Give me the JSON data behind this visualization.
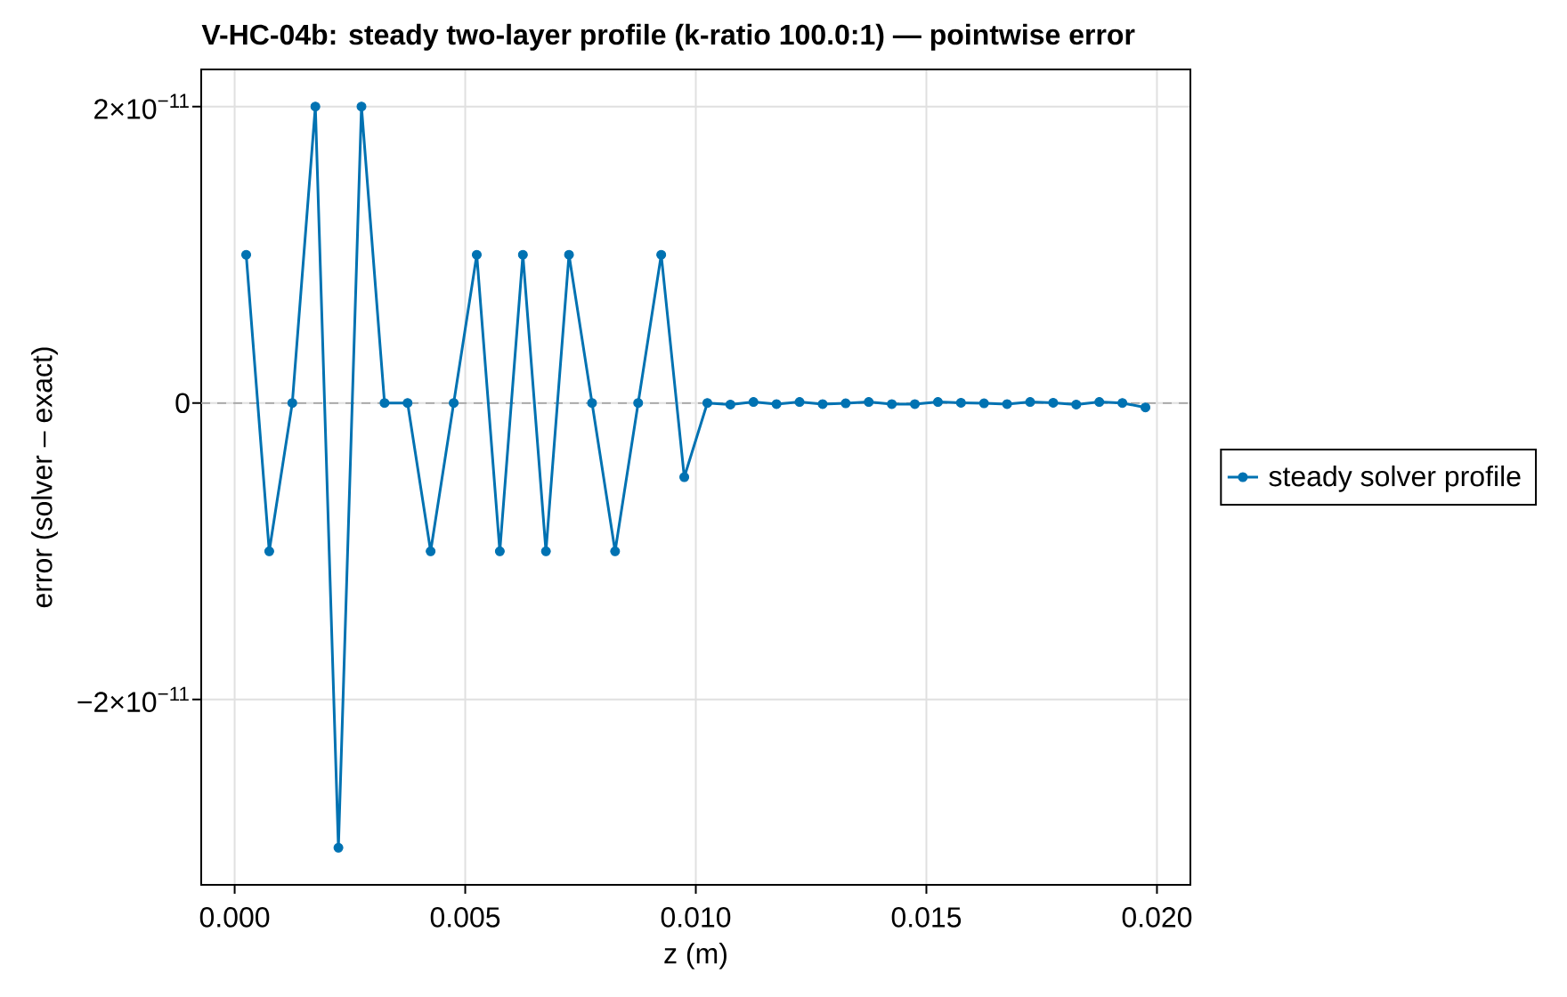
{
  "chart_data": {
    "type": "line",
    "title": "V-HC-04b: steady two-layer profile (k-ratio 100.0:1) — pointwise error",
    "xlabel": "z (m)",
    "ylabel": "error (solver – exact)",
    "x": [
      0.00025,
      0.00075,
      0.00125,
      0.00175,
      0.00225,
      0.00275,
      0.00325,
      0.00375,
      0.00425,
      0.00475,
      0.00525,
      0.00575,
      0.00625,
      0.00675,
      0.00725,
      0.00775,
      0.00825,
      0.00875,
      0.00925,
      0.00975,
      0.01025,
      0.01075,
      0.01125,
      0.01175,
      0.01225,
      0.01275,
      0.01325,
      0.01375,
      0.01425,
      0.01475,
      0.01525,
      0.01575,
      0.01625,
      0.01675,
      0.01725,
      0.01775,
      0.01825,
      0.01875,
      0.01925,
      0.01975
    ],
    "series": [
      {
        "name": "steady solver profile",
        "color": "#0072b2",
        "values": [
          1e-11,
          -1e-11,
          0,
          2e-11,
          -3e-11,
          2e-11,
          0,
          0,
          -1e-11,
          0,
          1e-11,
          -1e-11,
          1e-11,
          -1e-11,
          1e-11,
          0,
          -1e-11,
          0,
          1e-11,
          -5e-12,
          0,
          -1e-13,
          7e-14,
          -7e-14,
          7e-14,
          -7e-14,
          -2e-14,
          7e-14,
          -7e-14,
          -7e-14,
          7e-14,
          2e-14,
          -2e-14,
          -7e-14,
          7e-14,
          2e-14,
          -1e-13,
          7e-14,
          0,
          -3e-13
        ]
      }
    ],
    "xlim": [
      -0.000725,
      0.020725
    ],
    "ylim": [
      -3.25e-11,
      2.25e-11
    ],
    "xticks": [
      {
        "value": 0,
        "label": "0.000"
      },
      0.005,
      {
        "value": 0.01,
        "label": "0.010"
      },
      0.015,
      {
        "value": 0.02,
        "label": "0.020"
      }
    ],
    "yticks": [
      {
        "value": -2e-11,
        "label": "−2×10$^{−11}$"
      },
      0,
      {
        "value": 2e-11,
        "label": "2×10$^{−11}$"
      }
    ],
    "ref_lines": [
      {
        "axis": "y",
        "value": 0,
        "color": "#a6a6a6",
        "line_style": "dashed"
      }
    ],
    "grid": true,
    "legend": "right",
    "marker": "circle",
    "line_style": "solid"
  }
}
